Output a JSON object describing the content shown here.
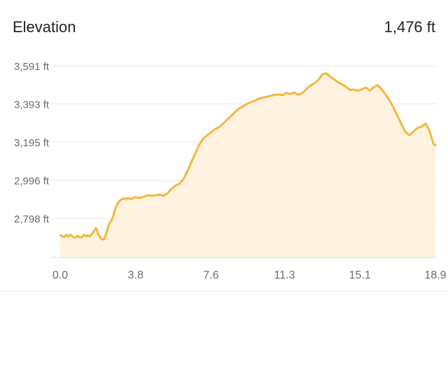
{
  "header": {
    "title": "Elevation",
    "total": "1,476 ft"
  },
  "colors": {
    "line": "#f5b63f",
    "fill": "#fdf3e0",
    "grid": "#e6e6e6",
    "tick_text": "#6b6b6b",
    "title_text": "#222222"
  },
  "chart_data": {
    "type": "area",
    "title": "Elevation",
    "xlabel": "",
    "ylabel": "",
    "xlim": [
      0,
      18.9
    ],
    "ylim": [
      2620,
      3591
    ],
    "grid": true,
    "y_ticks": [
      3591,
      3393,
      3195,
      2996,
      2798
    ],
    "y_tick_labels": [
      "3,591 ft",
      "3,393 ft",
      "3,195 ft",
      "2,996 ft",
      "2,798 ft"
    ],
    "x_ticks": [
      0.0,
      3.8,
      7.6,
      11.3,
      15.1,
      18.9
    ],
    "x_tick_labels": [
      "0.0",
      "3.8",
      "7.6",
      "11.3",
      "15.1",
      "18.9"
    ],
    "series": [
      {
        "x": [
          0.0,
          0.1,
          0.2,
          0.3,
          0.4,
          0.5,
          0.6,
          0.7,
          0.8,
          0.9,
          1.0,
          1.1,
          1.2,
          1.3,
          1.4,
          1.5,
          1.6,
          1.7,
          1.8,
          1.9,
          2.0,
          2.1,
          2.2,
          2.3,
          2.4,
          2.5,
          2.6,
          2.7,
          2.8,
          2.9,
          3.0,
          3.1,
          3.2,
          3.3,
          3.4,
          3.5,
          3.6,
          3.7,
          3.8,
          4.0,
          4.2,
          4.4,
          4.6,
          4.8,
          5.0,
          5.2,
          5.4,
          5.6,
          5.8,
          6.0,
          6.2,
          6.4,
          6.6,
          6.8,
          7.0,
          7.2,
          7.4,
          7.6,
          7.8,
          8.0,
          8.2,
          8.4,
          8.6,
          8.8,
          9.0,
          9.2,
          9.4,
          9.6,
          9.8,
          10.0,
          10.2,
          10.4,
          10.6,
          10.8,
          11.0,
          11.2,
          11.4,
          11.6,
          11.8,
          12.0,
          12.2,
          12.4,
          12.6,
          12.8,
          13.0,
          13.2,
          13.4,
          13.6,
          13.8,
          14.0,
          14.2,
          14.4,
          14.6,
          14.8,
          15.0,
          15.2,
          15.4,
          15.6,
          15.8,
          16.0,
          16.2,
          16.4,
          16.6,
          16.8,
          17.0,
          17.2,
          17.4,
          17.6,
          17.8,
          18.0,
          18.2,
          18.4,
          18.6,
          18.8,
          18.9
        ],
        "y": [
          2710,
          2705,
          2700,
          2713,
          2702,
          2715,
          2705,
          2698,
          2700,
          2708,
          2698,
          2702,
          2712,
          2706,
          2710,
          2703,
          2718,
          2732,
          2748,
          2722,
          2700,
          2690,
          2688,
          2712,
          2750,
          2775,
          2790,
          2820,
          2855,
          2875,
          2890,
          2897,
          2902,
          2898,
          2903,
          2900,
          2898,
          2906,
          2908,
          2904,
          2910,
          2918,
          2915,
          2918,
          2922,
          2915,
          2928,
          2950,
          2968,
          2978,
          3000,
          3040,
          3090,
          3135,
          3180,
          3212,
          3230,
          3245,
          3262,
          3272,
          3290,
          3310,
          3330,
          3350,
          3368,
          3380,
          3392,
          3402,
          3410,
          3420,
          3425,
          3430,
          3435,
          3440,
          3442,
          3438,
          3450,
          3445,
          3452,
          3440,
          3450,
          3470,
          3488,
          3500,
          3518,
          3545,
          3552,
          3535,
          3520,
          3505,
          3495,
          3482,
          3465,
          3468,
          3460,
          3470,
          3478,
          3462,
          3480,
          3490,
          3468,
          3440,
          3410,
          3372,
          3330,
          3285,
          3245,
          3230,
          3250,
          3268,
          3275,
          3290,
          3255,
          3185,
          3178
        ]
      }
    ]
  }
}
